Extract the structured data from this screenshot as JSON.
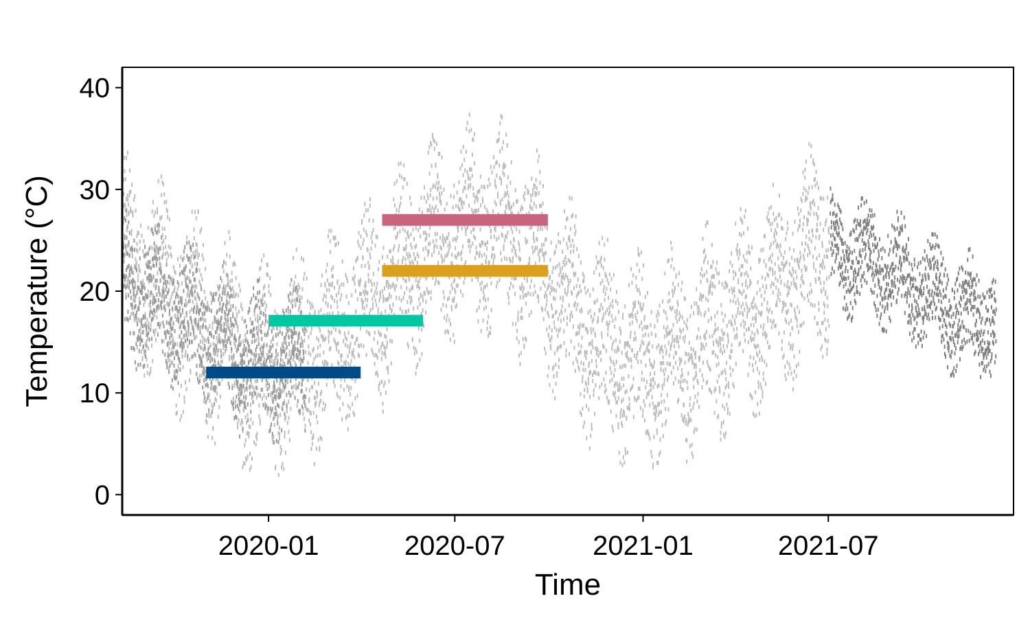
{
  "chart_data": {
    "type": "scatter",
    "title": "",
    "xlabel": "Time",
    "ylabel": "Temperature (°C)",
    "ylim": [
      -2,
      42
    ],
    "xlim": [
      "2019-08-11",
      "2021-12-29"
    ],
    "yticks": [
      0,
      10,
      20,
      30,
      40
    ],
    "xticks": [
      {
        "date": "2020-01-01",
        "label": "2020-01"
      },
      {
        "date": "2020-07-01",
        "label": "2020-07"
      },
      {
        "date": "2021-01-01",
        "label": "2021-01"
      },
      {
        "date": "2021-07-01",
        "label": "2021-07"
      }
    ],
    "grid": false,
    "legend": "none",
    "series": [
      {
        "color": "#bdbdbd",
        "start": "2019-08-12",
        "end": "2021-07-02",
        "mean_temp": [
          {
            "date": "2019-08-12",
            "y": 23
          },
          {
            "date": "2019-10-01",
            "y": 19
          },
          {
            "date": "2019-11-15",
            "y": 15
          },
          {
            "date": "2019-12-25",
            "y": 12
          },
          {
            "date": "2020-02-15",
            "y": 14
          },
          {
            "date": "2020-04-15",
            "y": 19
          },
          {
            "date": "2020-06-01",
            "y": 24
          },
          {
            "date": "2020-07-15",
            "y": 26
          },
          {
            "date": "2020-08-20",
            "y": 26
          },
          {
            "date": "2020-10-01",
            "y": 21
          },
          {
            "date": "2020-11-15",
            "y": 15
          },
          {
            "date": "2021-01-01",
            "y": 13
          },
          {
            "date": "2021-02-15",
            "y": 14
          },
          {
            "date": "2021-04-15",
            "y": 18
          },
          {
            "date": "2021-06-01",
            "y": 22
          },
          {
            "date": "2021-07-02",
            "y": 25
          }
        ],
        "spread": 14
      },
      {
        "color": "#999999",
        "start": "2019-08-12",
        "end": "2020-02-06",
        "mean_temp": [
          {
            "date": "2019-08-12",
            "y": 21
          },
          {
            "date": "2019-10-01",
            "y": 18
          },
          {
            "date": "2019-11-10",
            "y": 15
          },
          {
            "date": "2019-12-20",
            "y": 13
          },
          {
            "date": "2020-02-06",
            "y": 13
          }
        ],
        "spread": 10
      },
      {
        "color": "#808080",
        "start": "2021-07-03",
        "end": "2021-12-12",
        "mean_temp": [
          {
            "date": "2021-07-03",
            "y": 24
          },
          {
            "date": "2021-08-15",
            "y": 23
          },
          {
            "date": "2021-10-01",
            "y": 20
          },
          {
            "date": "2021-11-01",
            "y": 18
          },
          {
            "date": "2021-12-12",
            "y": 17
          }
        ],
        "spread": 8
      }
    ],
    "ranges": [
      {
        "start": "2019-11-01",
        "end": "2020-03-31",
        "y": 12.0,
        "color": "#004b87"
      },
      {
        "start": "2020-01-01",
        "end": "2020-05-31",
        "y": 17.1,
        "color": "#00c8a0"
      },
      {
        "start": "2020-04-21",
        "end": "2020-09-30",
        "y": 27.0,
        "color": "#c8647d"
      },
      {
        "start": "2020-04-21",
        "end": "2020-09-30",
        "y": 22.0,
        "color": "#dca01e"
      }
    ]
  }
}
